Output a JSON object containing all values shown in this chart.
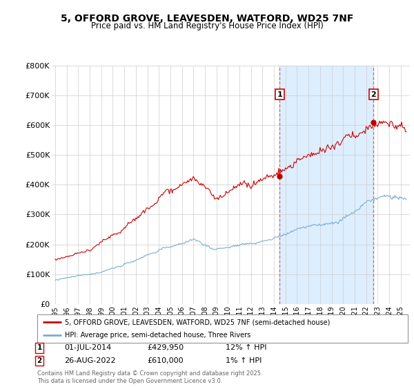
{
  "title": "5, OFFORD GROVE, LEAVESDEN, WATFORD, WD25 7NF",
  "subtitle": "Price paid vs. HM Land Registry's House Price Index (HPI)",
  "property_color": "#cc0000",
  "hpi_color": "#7aadcf",
  "shade_color": "#ddeeff",
  "vline_color": "#cc4444",
  "ylim": [
    0,
    800000
  ],
  "yticks": [
    0,
    100000,
    200000,
    300000,
    400000,
    500000,
    600000,
    700000,
    800000
  ],
  "ytick_labels": [
    "£0",
    "£100K",
    "£200K",
    "£300K",
    "£400K",
    "£500K",
    "£600K",
    "£700K",
    "£800K"
  ],
  "sale1_date": 2014.5,
  "sale1_price": 429950,
  "sale2_date": 2022.65,
  "sale2_price": 610000,
  "legend1": "5, OFFORD GROVE, LEAVESDEN, WATFORD, WD25 7NF (semi-detached house)",
  "legend2": "HPI: Average price, semi-detached house, Three Rivers",
  "footnote": "Contains HM Land Registry data © Crown copyright and database right 2025.\nThis data is licensed under the Open Government Licence v3.0.",
  "grid_color": "#cccccc",
  "xstart": 1995,
  "xend": 2025
}
